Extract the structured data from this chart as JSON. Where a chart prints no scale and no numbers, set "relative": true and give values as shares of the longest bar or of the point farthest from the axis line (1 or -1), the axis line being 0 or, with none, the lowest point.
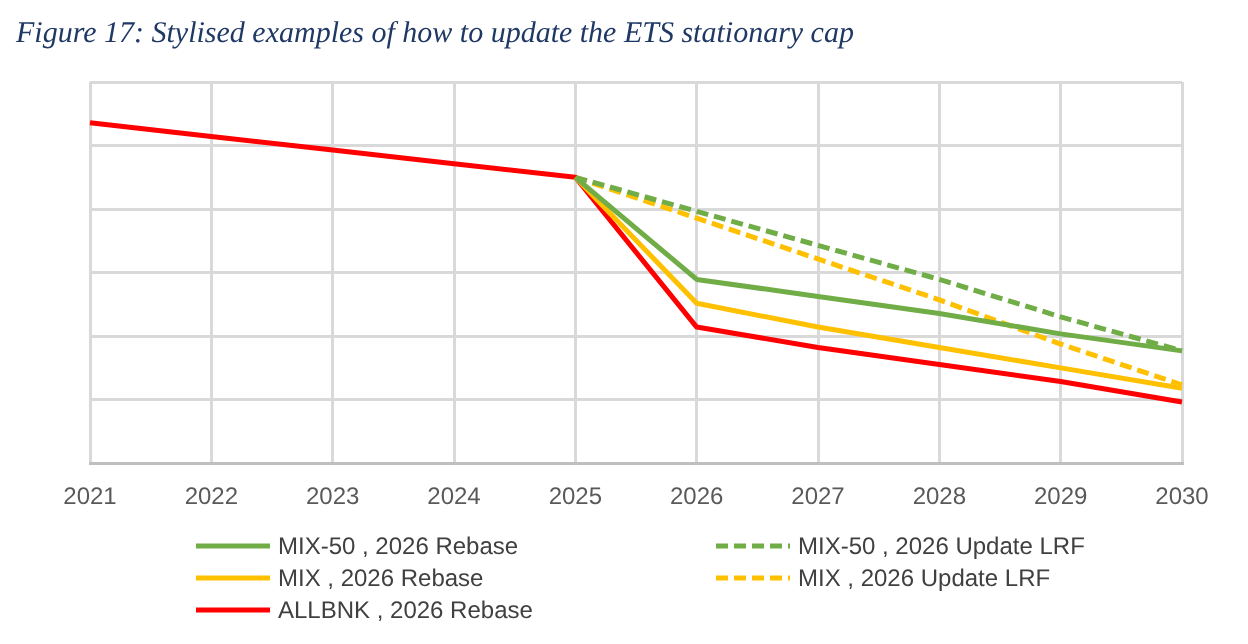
{
  "chart_data": {
    "type": "line",
    "title": "Figure 17: Stylised examples of how to update the ETS stationary cap",
    "categories": [
      "2021",
      "2022",
      "2023",
      "2024",
      "2025",
      "2026",
      "2027",
      "2028",
      "2029",
      "2030"
    ],
    "relative": true,
    "grid": true,
    "legend": "bottom",
    "marker": "none",
    "series": [
      {
        "name": "MIX-50 , 2026 Rebase",
        "color": "#70ad47",
        "values": [
          null,
          null,
          null,
          null,
          0.84,
          0.54,
          0.49,
          0.44,
          0.38,
          0.33
        ]
      },
      {
        "name": "MIX , 2026 Rebase",
        "color": "#ffc000",
        "values": [
          null,
          null,
          null,
          null,
          0.84,
          0.47,
          0.4,
          0.34,
          0.28,
          0.22
        ]
      },
      {
        "name": "ALLBNK , 2026 Rebase",
        "color": "#ff0000",
        "values": [
          1,
          0.96,
          0.92,
          0.88,
          0.84,
          0.4,
          0.34,
          0.29,
          0.24,
          0.18
        ]
      },
      {
        "name": "MIX-50 , 2026 Update LRF",
        "color": "#70ad47",
        "line_style": "dashed",
        "values": [
          null,
          null,
          null,
          null,
          0.84,
          0.74,
          0.64,
          0.54,
          0.43,
          0.33
        ]
      },
      {
        "name": "MIX , 2026 Update LRF",
        "color": "#ffc000",
        "line_style": "dashed",
        "values": [
          null,
          null,
          null,
          null,
          0.84,
          0.72,
          0.6,
          0.48,
          0.35,
          0.23
        ]
      }
    ]
  }
}
